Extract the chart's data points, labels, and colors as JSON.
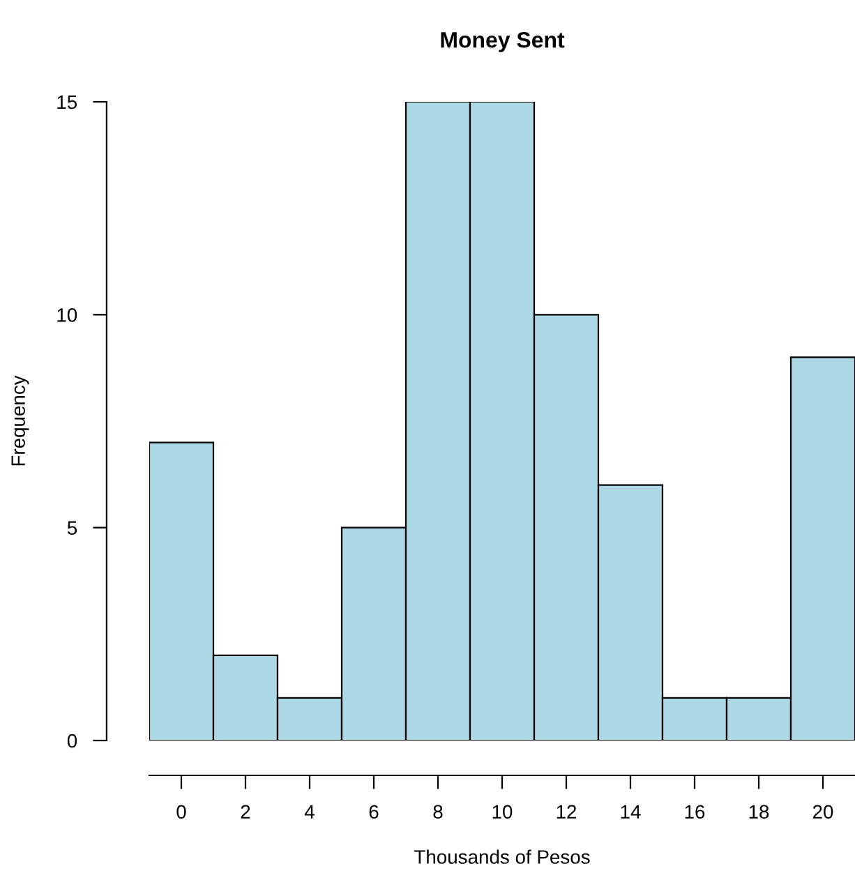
{
  "chart_data": {
    "type": "histogram",
    "title": "Money Sent",
    "xlabel": "Thousands of Pesos",
    "ylabel": "Frequency",
    "bins": [
      -1,
      1,
      3,
      5,
      7,
      9,
      11,
      13,
      15,
      17,
      19,
      21
    ],
    "values": [
      7,
      2,
      1,
      5,
      15,
      15,
      10,
      6,
      1,
      1,
      9
    ],
    "color": "#add8e6",
    "xlim": [
      -1,
      21
    ],
    "ylim": [
      0,
      15
    ],
    "xticks": [
      0,
      2,
      4,
      6,
      8,
      10,
      12,
      14,
      16,
      18,
      20
    ],
    "yticks": [
      0,
      5,
      10,
      15
    ],
    "grid": false,
    "legend": false
  }
}
